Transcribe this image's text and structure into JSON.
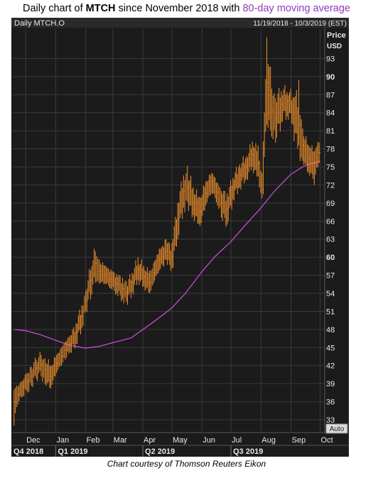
{
  "page": {
    "title_prefix": "Daily chart of ",
    "title_ticker": "MTCH",
    "title_mid": " since November 2018 with ",
    "title_accent": "80-day moving average",
    "caption": "Chart courtesy of Thomson Reuters Eikon"
  },
  "colors": {
    "background": "#1b1b1b",
    "price": "#f0902c",
    "moving_average": "#c84ad8",
    "axis_text": "#e8e8e8",
    "grid": "#3b3b3b",
    "header_bar": "#2a2a2a"
  },
  "chart_data": {
    "type": "ohlc",
    "instrument_label": "Daily MTCH.O",
    "date_range_label": "11/19/2018 - 10/3/2019 (EST)",
    "ylabel": "Price",
    "yunit": "USD",
    "autoscale_label": "Auto",
    "ylim": [
      31,
      98
    ],
    "y_ticks": [
      33,
      36,
      39,
      42,
      45,
      48,
      51,
      54,
      57,
      60,
      63,
      66,
      69,
      72,
      75,
      78,
      81,
      84,
      87,
      90,
      93
    ],
    "y_ticks_bold": [
      60,
      90
    ],
    "x_start": "2018-11-19",
    "x_end": "2019-10-03",
    "x_ticks": [
      {
        "label": "Dec",
        "date": "2018-12-01"
      },
      {
        "label": "Jan",
        "date": "2019-01-01"
      },
      {
        "label": "Feb",
        "date": "2019-02-01"
      },
      {
        "label": "Mar",
        "date": "2019-03-01"
      },
      {
        "label": "Apr",
        "date": "2019-04-01"
      },
      {
        "label": "May",
        "date": "2019-05-01"
      },
      {
        "label": "Jun",
        "date": "2019-06-01"
      },
      {
        "label": "Jul",
        "date": "2019-07-01"
      },
      {
        "label": "Aug",
        "date": "2019-08-01"
      },
      {
        "label": "Sep",
        "date": "2019-09-01"
      },
      {
        "label": "Oct",
        "date": "2019-10-01"
      }
    ],
    "quarters": [
      {
        "label": "Q4 2018",
        "date": "2018-10-01"
      },
      {
        "label": "Q1 2019",
        "date": "2019-01-01"
      },
      {
        "label": "Q2 2019",
        "date": "2019-04-01"
      },
      {
        "label": "Q3 2019",
        "date": "2019-07-01"
      }
    ],
    "series": [
      {
        "kind": "price",
        "points": [
          {
            "d": "2018-11-19",
            "c": 36.0,
            "h": 38.0,
            "l": 32.0
          },
          {
            "d": "2018-11-23",
            "c": 37.2,
            "h": 38.5,
            "l": 35.5
          },
          {
            "d": "2018-11-28",
            "c": 38.4,
            "h": 39.5,
            "l": 36.8
          },
          {
            "d": "2018-12-03",
            "c": 39.4,
            "h": 40.8,
            "l": 37.5
          },
          {
            "d": "2018-12-07",
            "c": 40.3,
            "h": 41.8,
            "l": 38.6
          },
          {
            "d": "2018-12-12",
            "c": 41.6,
            "h": 43.0,
            "l": 39.8
          },
          {
            "d": "2018-12-17",
            "c": 42.2,
            "h": 43.8,
            "l": 40.2
          },
          {
            "d": "2018-12-21",
            "c": 41.3,
            "h": 43.2,
            "l": 39.0
          },
          {
            "d": "2018-12-27",
            "c": 40.2,
            "h": 42.0,
            "l": 38.2
          },
          {
            "d": "2019-01-02",
            "c": 42.4,
            "h": 43.8,
            "l": 40.8
          },
          {
            "d": "2019-01-07",
            "c": 43.6,
            "h": 45.0,
            "l": 42.0
          },
          {
            "d": "2019-01-11",
            "c": 44.6,
            "h": 46.0,
            "l": 43.0
          },
          {
            "d": "2019-01-16",
            "c": 45.6,
            "h": 47.0,
            "l": 44.2
          },
          {
            "d": "2019-01-22",
            "c": 47.4,
            "h": 49.0,
            "l": 45.6
          },
          {
            "d": "2019-01-28",
            "c": 50.2,
            "h": 52.0,
            "l": 48.2
          },
          {
            "d": "2019-02-01",
            "c": 52.8,
            "h": 54.4,
            "l": 51.0
          },
          {
            "d": "2019-02-06",
            "c": 56.2,
            "h": 57.8,
            "l": 53.0
          },
          {
            "d": "2019-02-11",
            "c": 59.0,
            "h": 61.0,
            "l": 55.8
          },
          {
            "d": "2019-02-15",
            "c": 57.6,
            "h": 59.6,
            "l": 55.6
          },
          {
            "d": "2019-02-21",
            "c": 57.2,
            "h": 58.6,
            "l": 55.6
          },
          {
            "d": "2019-02-27",
            "c": 56.4,
            "h": 58.0,
            "l": 54.8
          },
          {
            "d": "2019-03-05",
            "c": 55.6,
            "h": 57.2,
            "l": 54.0
          },
          {
            "d": "2019-03-11",
            "c": 54.8,
            "h": 56.6,
            "l": 53.0
          },
          {
            "d": "2019-03-15",
            "c": 54.0,
            "h": 56.0,
            "l": 52.6
          },
          {
            "d": "2019-03-21",
            "c": 55.8,
            "h": 57.4,
            "l": 54.2
          },
          {
            "d": "2019-03-27",
            "c": 58.0,
            "h": 60.0,
            "l": 56.2
          },
          {
            "d": "2019-04-02",
            "c": 56.8,
            "h": 58.6,
            "l": 55.2
          },
          {
            "d": "2019-04-08",
            "c": 55.8,
            "h": 57.8,
            "l": 54.0
          },
          {
            "d": "2019-04-12",
            "c": 57.4,
            "h": 59.0,
            "l": 55.6
          },
          {
            "d": "2019-04-18",
            "c": 59.6,
            "h": 61.4,
            "l": 57.8
          },
          {
            "d": "2019-04-25",
            "c": 61.0,
            "h": 63.0,
            "l": 59.6
          },
          {
            "d": "2019-05-01",
            "c": 60.0,
            "h": 62.4,
            "l": 58.2
          },
          {
            "d": "2019-05-07",
            "c": 66.4,
            "h": 69.0,
            "l": 63.0
          },
          {
            "d": "2019-05-13",
            "c": 71.0,
            "h": 73.6,
            "l": 68.2
          },
          {
            "d": "2019-05-17",
            "c": 71.6,
            "h": 75.2,
            "l": 69.2
          },
          {
            "d": "2019-05-23",
            "c": 69.2,
            "h": 71.6,
            "l": 67.0
          },
          {
            "d": "2019-05-30",
            "c": 67.6,
            "h": 70.0,
            "l": 65.2
          },
          {
            "d": "2019-06-05",
            "c": 70.6,
            "h": 72.6,
            "l": 68.6
          },
          {
            "d": "2019-06-11",
            "c": 72.6,
            "h": 74.0,
            "l": 70.6
          },
          {
            "d": "2019-06-17",
            "c": 70.8,
            "h": 72.4,
            "l": 68.6
          },
          {
            "d": "2019-06-21",
            "c": 69.0,
            "h": 71.0,
            "l": 66.6
          },
          {
            "d": "2019-06-27",
            "c": 68.0,
            "h": 70.6,
            "l": 65.4
          },
          {
            "d": "2019-07-03",
            "c": 71.6,
            "h": 73.2,
            "l": 69.6
          },
          {
            "d": "2019-07-10",
            "c": 73.6,
            "h": 75.4,
            "l": 71.6
          },
          {
            "d": "2019-07-17",
            "c": 75.0,
            "h": 76.8,
            "l": 73.0
          },
          {
            "d": "2019-07-23",
            "c": 77.0,
            "h": 79.2,
            "l": 75.0
          },
          {
            "d": "2019-07-29",
            "c": 75.6,
            "h": 78.6,
            "l": 73.4
          },
          {
            "d": "2019-08-02",
            "c": 71.2,
            "h": 74.0,
            "l": 69.8
          },
          {
            "d": "2019-08-07",
            "c": 89.0,
            "h": 96.5,
            "l": 82.0
          },
          {
            "d": "2019-08-12",
            "c": 84.4,
            "h": 88.0,
            "l": 80.0
          },
          {
            "d": "2019-08-16",
            "c": 83.2,
            "h": 86.4,
            "l": 79.0
          },
          {
            "d": "2019-08-22",
            "c": 85.4,
            "h": 87.6,
            "l": 82.4
          },
          {
            "d": "2019-08-28",
            "c": 86.0,
            "h": 87.4,
            "l": 83.4
          },
          {
            "d": "2019-09-03",
            "c": 84.6,
            "h": 86.6,
            "l": 82.0
          },
          {
            "d": "2019-09-09",
            "c": 82.0,
            "h": 89.4,
            "l": 78.6
          },
          {
            "d": "2019-09-13",
            "c": 78.6,
            "h": 81.4,
            "l": 76.0
          },
          {
            "d": "2019-09-19",
            "c": 76.4,
            "h": 78.6,
            "l": 74.0
          },
          {
            "d": "2019-09-25",
            "c": 75.6,
            "h": 77.6,
            "l": 72.0
          },
          {
            "d": "2019-09-30",
            "c": 77.4,
            "h": 79.0,
            "l": 75.6
          }
        ]
      },
      {
        "kind": "moving_average",
        "period": 80,
        "points": [
          {
            "d": "2018-11-19",
            "v": 48.0
          },
          {
            "d": "2018-12-01",
            "v": 47.8
          },
          {
            "d": "2018-12-15",
            "v": 47.2
          },
          {
            "d": "2019-01-01",
            "v": 46.2
          },
          {
            "d": "2019-01-15",
            "v": 45.4
          },
          {
            "d": "2019-02-01",
            "v": 44.9
          },
          {
            "d": "2019-02-15",
            "v": 45.2
          },
          {
            "d": "2019-03-01",
            "v": 45.8
          },
          {
            "d": "2019-03-20",
            "v": 46.6
          },
          {
            "d": "2019-04-01",
            "v": 48.0
          },
          {
            "d": "2019-04-15",
            "v": 49.6
          },
          {
            "d": "2019-05-01",
            "v": 51.6
          },
          {
            "d": "2019-05-15",
            "v": 54.0
          },
          {
            "d": "2019-06-01",
            "v": 57.6
          },
          {
            "d": "2019-06-15",
            "v": 60.2
          },
          {
            "d": "2019-07-01",
            "v": 62.6
          },
          {
            "d": "2019-07-15",
            "v": 65.2
          },
          {
            "d": "2019-08-01",
            "v": 68.2
          },
          {
            "d": "2019-08-15",
            "v": 71.0
          },
          {
            "d": "2019-09-01",
            "v": 73.8
          },
          {
            "d": "2019-09-15",
            "v": 75.2
          },
          {
            "d": "2019-10-01",
            "v": 76.0
          }
        ]
      }
    ]
  }
}
